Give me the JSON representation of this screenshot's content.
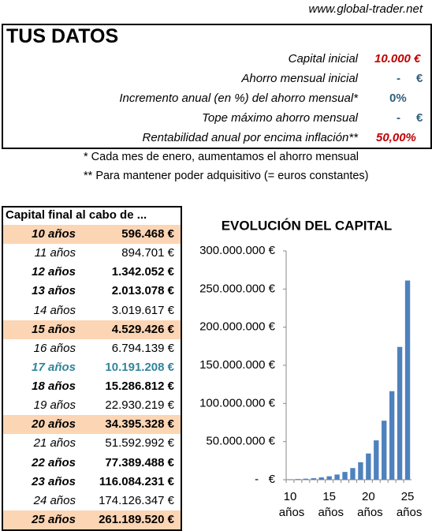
{
  "header": {
    "site": "www.global-trader.net",
    "title": "TUS DATOS"
  },
  "inputs": [
    {
      "label": "Capital inicial",
      "value": "10.000 €"
    },
    {
      "label": "Ahorro mensual inicial",
      "value": "-",
      "unit": "€"
    },
    {
      "label": "Incremento anual (en %) del ahorro mensual*",
      "value": "0%"
    },
    {
      "label": "Tope máximo ahorro mensual",
      "value": "-",
      "unit": "€"
    },
    {
      "label": "Rentabilidad anual por encima inflación**",
      "value": "50,00%"
    }
  ],
  "notes": [
    "* Cada mes de enero, aumentamos el ahorro mensual",
    "** Para mantener poder adquisitivo (= euros constantes)"
  ],
  "table": {
    "header": "Capital final al cabo de ...",
    "rows": [
      [
        "10 años",
        "596.468 €"
      ],
      [
        "11 años",
        "894.701 €"
      ],
      [
        "12 años",
        "1.342.052 €"
      ],
      [
        "13 años",
        "2.013.078 €"
      ],
      [
        "14 años",
        "3.019.617 €"
      ],
      [
        "15 años",
        "4.529.426 €"
      ],
      [
        "16 años",
        "6.794.139 €"
      ],
      [
        "17 años",
        "10.191.208 €"
      ],
      [
        "18 años",
        "15.286.812 €"
      ],
      [
        "19 años",
        "22.930.219 €"
      ],
      [
        "20 años",
        "34.395.328 €"
      ],
      [
        "21 años",
        "51.592.992 €"
      ],
      [
        "22 años",
        "77.389.488 €"
      ],
      [
        "23 años",
        "116.084.231 €"
      ],
      [
        "24 años",
        "174.126.347 €"
      ],
      [
        "25 años",
        "261.189.520 €"
      ]
    ]
  },
  "chart_data": {
    "type": "bar",
    "title": "EVOLUCIÓN DEL CAPITAL",
    "color": "#4f81bd",
    "categories": [
      "10 años",
      null,
      null,
      null,
      null,
      "15 años",
      null,
      null,
      null,
      null,
      "20 años",
      null,
      null,
      null,
      null,
      "25 años"
    ],
    "values": [
      596468,
      894701,
      1342052,
      2013078,
      3019617,
      4529426,
      6794139,
      10191208,
      15286812,
      22930219,
      34395328,
      51592992,
      77389488,
      116084231,
      174126347,
      261189520
    ],
    "ylim": [
      0,
      300000000
    ],
    "yticks": [
      {
        "value": 0,
        "label": "-   €"
      },
      {
        "value": 50000000,
        "label": "50.000.000 €"
      },
      {
        "value": 100000000,
        "label": "100.000.000 €"
      },
      {
        "value": 150000000,
        "label": "150.000.000 €"
      },
      {
        "value": 200000000,
        "label": "200.000.000 €"
      },
      {
        "value": 250000000,
        "label": "250.000.000 €"
      },
      {
        "value": 300000000,
        "label": "300.000.000 €"
      }
    ]
  }
}
